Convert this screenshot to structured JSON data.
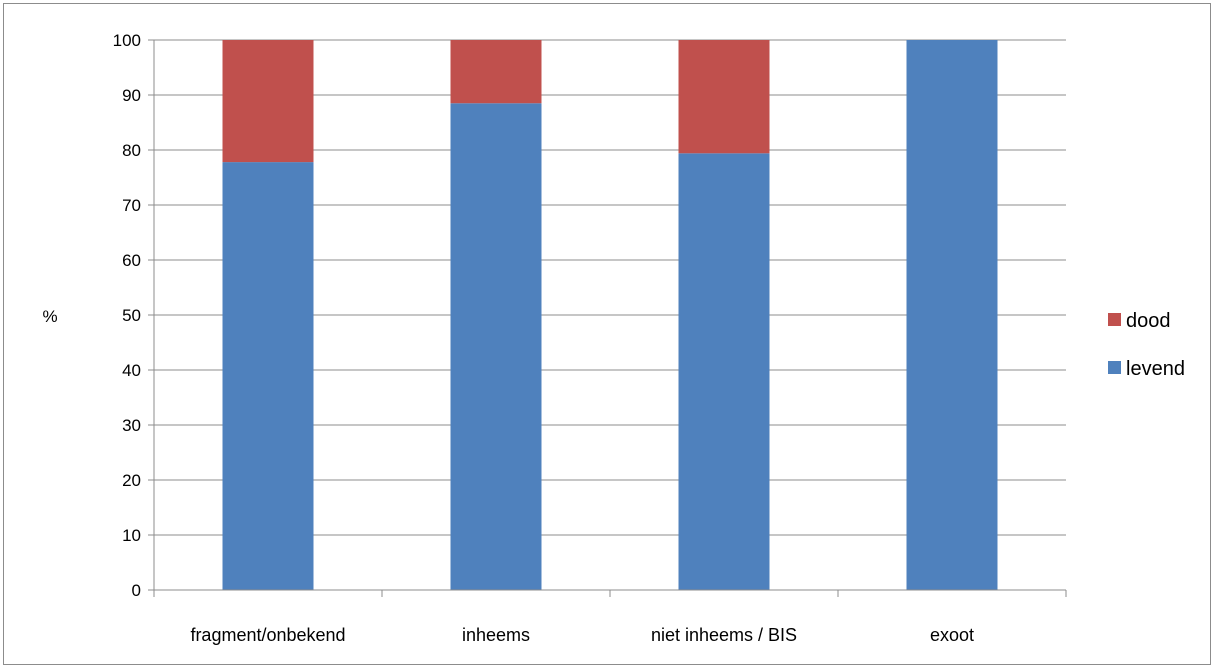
{
  "chart_data": {
    "type": "bar",
    "stacked": true,
    "categories": [
      "fragment/onbekend",
      "inheems",
      "niet inheems / BIS",
      "exoot"
    ],
    "series": [
      {
        "name": "levend",
        "values": [
          77.8,
          88.5,
          79.4,
          100
        ],
        "color": "#4f81bd"
      },
      {
        "name": "dood",
        "values": [
          22.2,
          11.5,
          20.6,
          0
        ],
        "color": "#c0504d"
      }
    ],
    "ylabel": "%",
    "xlabel": "",
    "title": "",
    "ylim": [
      0,
      100
    ],
    "yticks": [
      0,
      10,
      20,
      30,
      40,
      50,
      60,
      70,
      80,
      90,
      100
    ],
    "grid": true,
    "legend_position": "right",
    "legend_order": [
      "dood",
      "levend"
    ]
  }
}
